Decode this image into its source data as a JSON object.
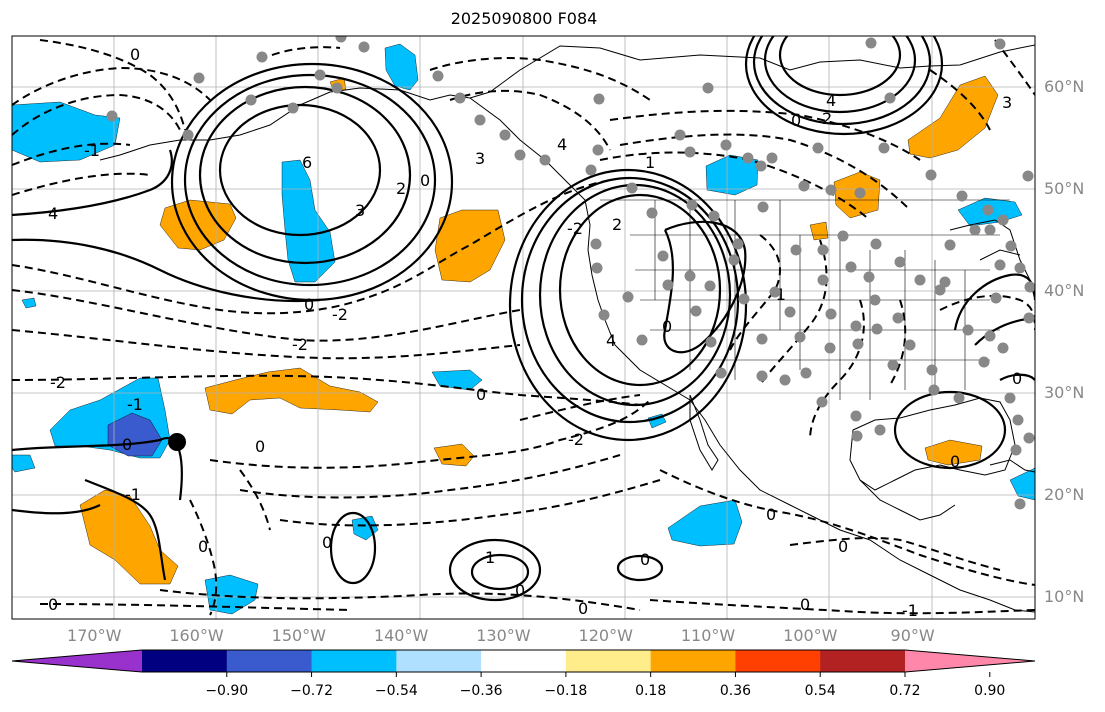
{
  "title": "2025090800 F084",
  "lat_labels": [
    {
      "text": "60°N",
      "lat": 60
    },
    {
      "text": "50°N",
      "lat": 50
    },
    {
      "text": "40°N",
      "lat": 40
    },
    {
      "text": "30°N",
      "lat": 30
    },
    {
      "text": "20°N",
      "lat": 20
    },
    {
      "text": "10°N",
      "lat": 10
    }
  ],
  "lon_labels": [
    {
      "text": "170°W",
      "lon": -170
    },
    {
      "text": "160°W",
      "lon": -160
    },
    {
      "text": "150°W",
      "lon": -150
    },
    {
      "text": "140°W",
      "lon": -140
    },
    {
      "text": "130°W",
      "lon": -130
    },
    {
      "text": "120°W",
      "lon": -120
    },
    {
      "text": "110°W",
      "lon": -110
    },
    {
      "text": "100°W",
      "lon": -100
    },
    {
      "text": "90°W",
      "lon": -90
    }
  ],
  "colorbar": {
    "colors": [
      "#9932cc",
      "#000080",
      "#3a5bcd",
      "#00bfff",
      "#afe0ff",
      "#ffffff",
      "#ffec8b",
      "#ffa500",
      "#ff4000",
      "#b22222",
      "#ff88aa"
    ],
    "tick_labels": [
      "−0.90",
      "−0.72",
      "−0.54",
      "−0.36",
      "−0.18",
      "0.18",
      "0.36",
      "0.54",
      "0.72",
      "0.90"
    ]
  },
  "contour_labels": [
    "-2",
    "-1",
    "0",
    "1",
    "2",
    "3",
    "4",
    "6"
  ],
  "colors": {
    "frame": "#000000",
    "grid": "#b0b0b0",
    "contour": "#000000",
    "station_dot": "#888888",
    "positive_fill": "#ffa500",
    "negative_fill": "#00bfff",
    "strong_negative_fill": "#3a5bcd"
  },
  "map_extent": {
    "lon_min": -178,
    "lon_max": -78,
    "lat_min": 8,
    "lat_max": 65
  }
}
